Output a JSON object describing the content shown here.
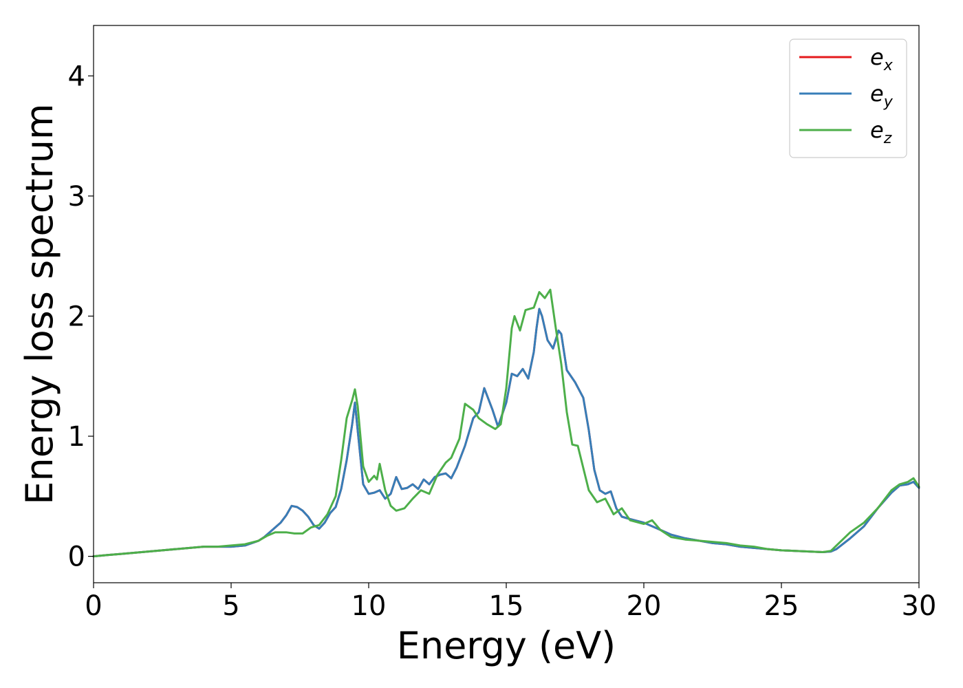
{
  "chart_data": {
    "type": "line",
    "title": "",
    "xlabel": "Energy (eV)",
    "ylabel": "Energy loss spectrum",
    "xlim": [
      0,
      30
    ],
    "ylim": [
      -0.22,
      4.42
    ],
    "xticks": [
      0,
      5,
      10,
      15,
      20,
      25,
      30
    ],
    "yticks": [
      0,
      1,
      2,
      3,
      4
    ],
    "grid": false,
    "legend_position": "top-right",
    "series": [
      {
        "name": "e_x",
        "legend_base": "e",
        "legend_sub": "x",
        "color": "#e41a1c",
        "x": [
          0,
          0.5,
          1,
          1.5,
          2,
          2.5,
          3,
          3.5,
          4,
          4.5,
          5,
          5.5,
          6,
          6.2,
          6.5,
          6.8,
          7,
          7.2,
          7.4,
          7.6,
          7.8,
          8,
          8.2,
          8.4,
          8.6,
          8.8,
          9,
          9.2,
          9.4,
          9.5,
          9.6,
          9.8,
          10,
          10.2,
          10.4,
          10.6,
          10.8,
          11,
          11.2,
          11.4,
          11.6,
          11.8,
          12,
          12.2,
          12.4,
          12.6,
          12.8,
          13,
          13.2,
          13.5,
          13.8,
          14,
          14.2,
          14.5,
          14.7,
          15,
          15.2,
          15.4,
          15.6,
          15.8,
          16,
          16.1,
          16.2,
          16.3,
          16.5,
          16.7,
          16.9,
          17,
          17.2,
          17.5,
          17.8,
          18,
          18.2,
          18.4,
          18.6,
          18.8,
          19,
          19.2,
          19.5,
          20,
          20.5,
          21,
          21.5,
          22,
          22.5,
          23,
          23.5,
          24,
          24.5,
          25,
          25.5,
          26,
          26.5,
          26.8,
          27,
          27.5,
          28,
          28.5,
          29,
          29.3,
          29.6,
          29.8,
          30
        ],
        "y": [
          0,
          0.01,
          0.02,
          0.03,
          0.04,
          0.05,
          0.06,
          0.07,
          0.08,
          0.08,
          0.08,
          0.09,
          0.13,
          0.16,
          0.22,
          0.28,
          0.34,
          0.42,
          0.41,
          0.38,
          0.33,
          0.26,
          0.23,
          0.28,
          0.36,
          0.41,
          0.56,
          0.8,
          1.1,
          1.28,
          1.05,
          0.6,
          0.52,
          0.53,
          0.55,
          0.48,
          0.52,
          0.66,
          0.56,
          0.57,
          0.6,
          0.56,
          0.64,
          0.6,
          0.66,
          0.68,
          0.69,
          0.65,
          0.74,
          0.92,
          1.15,
          1.2,
          1.4,
          1.22,
          1.08,
          1.28,
          1.52,
          1.5,
          1.56,
          1.48,
          1.7,
          1.9,
          2.06,
          2.0,
          1.8,
          1.73,
          1.88,
          1.85,
          1.55,
          1.45,
          1.32,
          1.05,
          0.72,
          0.55,
          0.52,
          0.54,
          0.4,
          0.33,
          0.31,
          0.28,
          0.23,
          0.18,
          0.15,
          0.13,
          0.11,
          0.1,
          0.08,
          0.07,
          0.06,
          0.05,
          0.045,
          0.04,
          0.035,
          0.04,
          0.06,
          0.15,
          0.25,
          0.4,
          0.53,
          0.59,
          0.6,
          0.62,
          0.57
        ]
      },
      {
        "name": "e_y",
        "legend_base": "e",
        "legend_sub": "y",
        "color": "#377eb8",
        "x": [
          0,
          0.5,
          1,
          1.5,
          2,
          2.5,
          3,
          3.5,
          4,
          4.5,
          5,
          5.5,
          6,
          6.2,
          6.5,
          6.8,
          7,
          7.2,
          7.4,
          7.6,
          7.8,
          8,
          8.2,
          8.4,
          8.6,
          8.8,
          9,
          9.2,
          9.4,
          9.5,
          9.6,
          9.8,
          10,
          10.2,
          10.4,
          10.6,
          10.8,
          11,
          11.2,
          11.4,
          11.6,
          11.8,
          12,
          12.2,
          12.4,
          12.6,
          12.8,
          13,
          13.2,
          13.5,
          13.8,
          14,
          14.2,
          14.5,
          14.7,
          15,
          15.2,
          15.4,
          15.6,
          15.8,
          16,
          16.1,
          16.2,
          16.3,
          16.5,
          16.7,
          16.9,
          17,
          17.2,
          17.5,
          17.8,
          18,
          18.2,
          18.4,
          18.6,
          18.8,
          19,
          19.2,
          19.5,
          20,
          20.5,
          21,
          21.5,
          22,
          22.5,
          23,
          23.5,
          24,
          24.5,
          25,
          25.5,
          26,
          26.5,
          26.8,
          27,
          27.5,
          28,
          28.5,
          29,
          29.3,
          29.6,
          29.8,
          30
        ],
        "y": [
          0,
          0.01,
          0.02,
          0.03,
          0.04,
          0.05,
          0.06,
          0.07,
          0.08,
          0.08,
          0.08,
          0.09,
          0.13,
          0.16,
          0.22,
          0.28,
          0.34,
          0.42,
          0.41,
          0.38,
          0.33,
          0.26,
          0.23,
          0.28,
          0.36,
          0.41,
          0.56,
          0.8,
          1.1,
          1.28,
          1.05,
          0.6,
          0.52,
          0.53,
          0.55,
          0.48,
          0.52,
          0.66,
          0.56,
          0.57,
          0.6,
          0.56,
          0.64,
          0.6,
          0.66,
          0.68,
          0.69,
          0.65,
          0.74,
          0.92,
          1.15,
          1.2,
          1.4,
          1.22,
          1.08,
          1.28,
          1.52,
          1.5,
          1.56,
          1.48,
          1.7,
          1.9,
          2.06,
          2.0,
          1.8,
          1.73,
          1.88,
          1.85,
          1.55,
          1.45,
          1.32,
          1.05,
          0.72,
          0.55,
          0.52,
          0.54,
          0.4,
          0.33,
          0.31,
          0.28,
          0.23,
          0.18,
          0.15,
          0.13,
          0.11,
          0.1,
          0.08,
          0.07,
          0.06,
          0.05,
          0.045,
          0.04,
          0.035,
          0.04,
          0.06,
          0.15,
          0.25,
          0.4,
          0.53,
          0.59,
          0.6,
          0.62,
          0.57
        ]
      },
      {
        "name": "e_z",
        "legend_base": "e",
        "legend_sub": "z",
        "color": "#4daf4a",
        "x": [
          0,
          0.5,
          1,
          1.5,
          2,
          2.5,
          3,
          3.5,
          4,
          4.5,
          5,
          5.5,
          6,
          6.3,
          6.6,
          7,
          7.3,
          7.6,
          7.9,
          8.2,
          8.5,
          8.8,
          9,
          9.2,
          9.4,
          9.5,
          9.6,
          9.8,
          10,
          10.2,
          10.3,
          10.4,
          10.6,
          10.8,
          11,
          11.3,
          11.6,
          11.9,
          12.2,
          12.5,
          12.8,
          13,
          13.3,
          13.5,
          13.8,
          14,
          14.3,
          14.6,
          14.8,
          15,
          15.2,
          15.3,
          15.5,
          15.7,
          16,
          16.2,
          16.4,
          16.6,
          16.8,
          17,
          17.2,
          17.4,
          17.6,
          18,
          18.3,
          18.6,
          18.9,
          19.2,
          19.5,
          20,
          20.3,
          20.6,
          21,
          21.5,
          22,
          22.5,
          23,
          23.5,
          24,
          24.5,
          25,
          25.5,
          26,
          26.5,
          26.8,
          27,
          27.5,
          28,
          28.5,
          29,
          29.3,
          29.6,
          29.8,
          30
        ],
        "y": [
          0,
          0.01,
          0.02,
          0.03,
          0.04,
          0.05,
          0.06,
          0.07,
          0.08,
          0.08,
          0.09,
          0.1,
          0.13,
          0.17,
          0.2,
          0.2,
          0.19,
          0.19,
          0.24,
          0.26,
          0.35,
          0.5,
          0.8,
          1.15,
          1.3,
          1.39,
          1.25,
          0.75,
          0.62,
          0.67,
          0.64,
          0.77,
          0.55,
          0.42,
          0.38,
          0.4,
          0.48,
          0.55,
          0.52,
          0.68,
          0.78,
          0.82,
          0.98,
          1.27,
          1.22,
          1.15,
          1.1,
          1.06,
          1.1,
          1.4,
          1.9,
          2.0,
          1.88,
          2.05,
          2.07,
          2.2,
          2.15,
          2.22,
          1.9,
          1.6,
          1.2,
          0.93,
          0.92,
          0.55,
          0.45,
          0.48,
          0.35,
          0.4,
          0.3,
          0.27,
          0.3,
          0.22,
          0.16,
          0.14,
          0.13,
          0.12,
          0.11,
          0.09,
          0.08,
          0.06,
          0.05,
          0.045,
          0.04,
          0.035,
          0.045,
          0.09,
          0.2,
          0.28,
          0.4,
          0.55,
          0.6,
          0.62,
          0.65,
          0.58
        ]
      }
    ]
  }
}
